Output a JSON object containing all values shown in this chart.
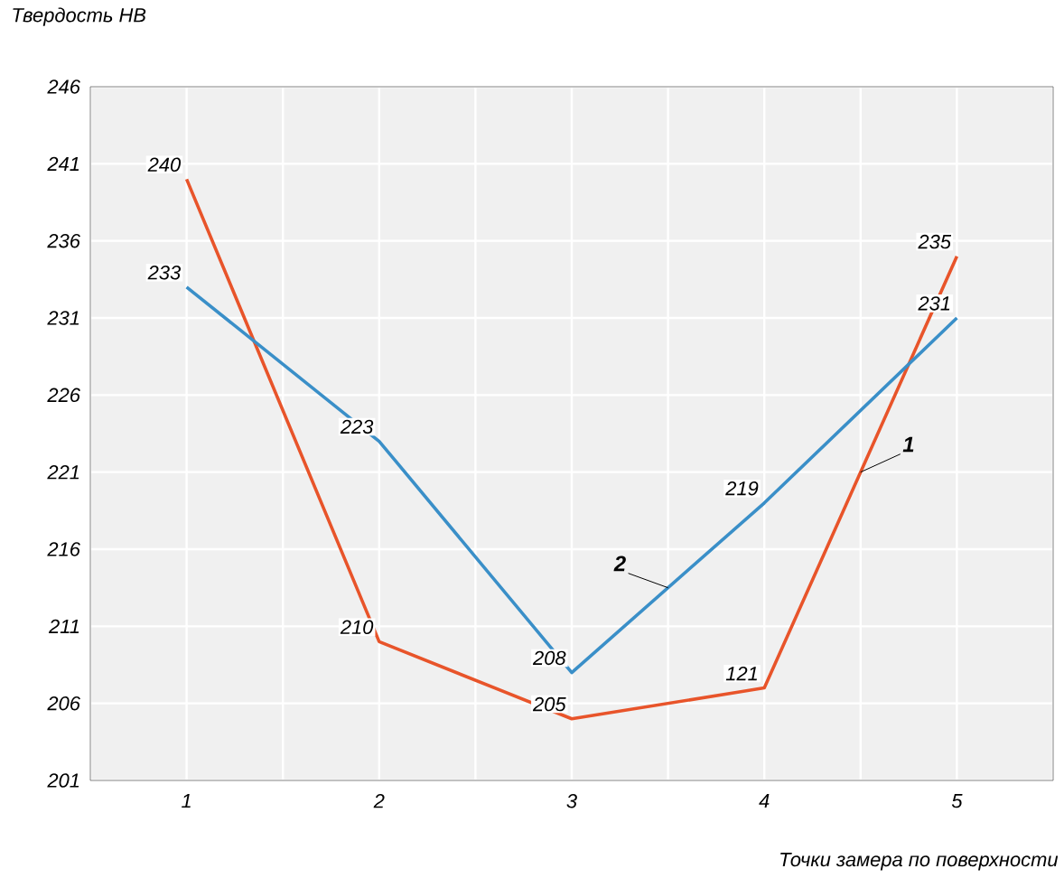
{
  "chart_data": {
    "type": "line",
    "xlabel": "Точки замера по поверхности",
    "ylabel": "Твердость НВ",
    "x": [
      1,
      2,
      3,
      4,
      5
    ],
    "xlim": [
      0.5,
      5.5
    ],
    "xticks": [
      {
        "value": 0.5,
        "label": null
      },
      1,
      {
        "value": 1.5,
        "label": null
      },
      2,
      {
        "value": 2.5,
        "label": null
      },
      3,
      {
        "value": 3.5,
        "label": null
      },
      4,
      {
        "value": 4.5,
        "label": null
      },
      5,
      {
        "value": 5.5,
        "label": null
      }
    ],
    "ylim": [
      201,
      246
    ],
    "yticks": [
      201,
      206,
      211,
      216,
      221,
      226,
      231,
      236,
      241,
      246
    ],
    "grid": true,
    "line_style": "solid",
    "annotations": [
      {
        "text": "121",
        "x": 4,
        "y": 207
      }
    ],
    "series": [
      {
        "name": "1",
        "color": "#e8542a",
        "values": [
          240,
          210,
          205,
          207,
          235
        ],
        "value_labels": [
          "240",
          "210",
          "205",
          null,
          "235"
        ]
      },
      {
        "name": "2",
        "color": "#3a8fc8",
        "values": [
          233,
          223,
          208,
          219,
          231
        ],
        "value_labels": [
          "233",
          "223",
          "208",
          "219",
          "231"
        ]
      }
    ]
  }
}
